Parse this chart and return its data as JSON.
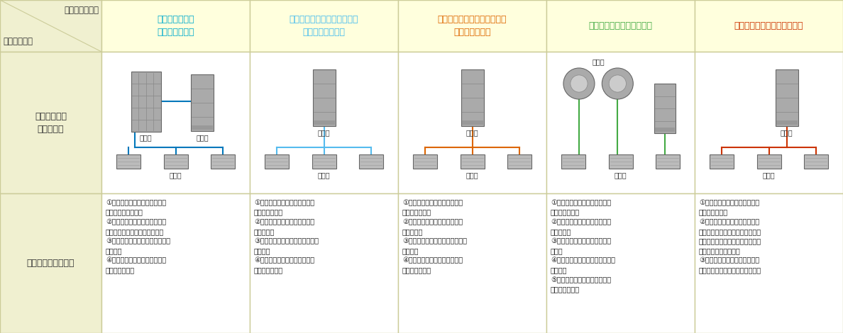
{
  "bg_color": "#fffff0",
  "header_bg": "#ffffdd",
  "cell_bg": "#ffffff",
  "border_color": "#cccc99",
  "label_bg": "#f0f0d0",
  "col_headers": [
    {
      "text": "氷蓄熱式ビル用\nマルチエアコン",
      "color": "#00aacc"
    },
    {
      "text": "電気式ビル用マルチエアコン\n（高効率タイプ）",
      "color": "#44bbee"
    },
    {
      "text": "電気式ビル用マルチエアコン\n（標準タイプ）",
      "color": "#dd6600"
    },
    {
      "text": "電気式セパレートエアコン",
      "color": "#44aa44"
    },
    {
      "text": "ガス式ビル用マルチエアコン",
      "color": "#cc3300"
    }
  ],
  "diagram_colors": [
    "#0077bb",
    "#55bbee",
    "#dd6600",
    "#44aa44",
    "#cc3300"
  ],
  "features": [
    "①夜間の蓄熱には割安な電気料\n金を利用できます。\n②氷を熱源に利用するため契約\n電力を抑えることが出来ます。\n③熱源がないため、安全・クリー\nンです。\n④ガス空調に比べてメンテナン\nスが容易です。",
    "①ピーク負荷に合わせた設備容\n量が必要です。\n②ピークに合わせた契約電力が\n必要です。\n③熱源がないため、安全・クリー\nンです。\n④ガス空調に比べてメンテナン\nスが容易です。",
    "①ピーク負荷に合わせた設備容\n量が必要です。\n②ピークに合わせた契約電力が\n必要です。\n③熱源がないため、安全・クリー\nンです。\n④ガス空調に比べてメンテナン\nスが容易です。",
    "①ピーク負荷に合わせた設備容\n量が必要です。\n②ピークに合わせた契約電力が\n必要です。\n③故障時に個別での修理が可能\nです。\n④熱源がないため、安全・クリー\nンです。\n⑤ガス空調に比べてメンテナン\nスが容易です。",
    "①ピーク負荷に合わせた設備容\n量が必要です。\n②定期的に保守点検（エンジン\nオイルの補充・交換、オイルフィ\nルタの交換、点火プラグの点検・\n交換等）が必要です。\n③可燃物を取り扱うため、火・\n地震等に対する考慮が必要です。"
  ],
  "header_row_label_top": "空調システム名",
  "header_row_label_bottom": "比較対象項目",
  "row_label_1": "空調システム\nイメージ図",
  "row_label_2": "空調システムの特徴"
}
